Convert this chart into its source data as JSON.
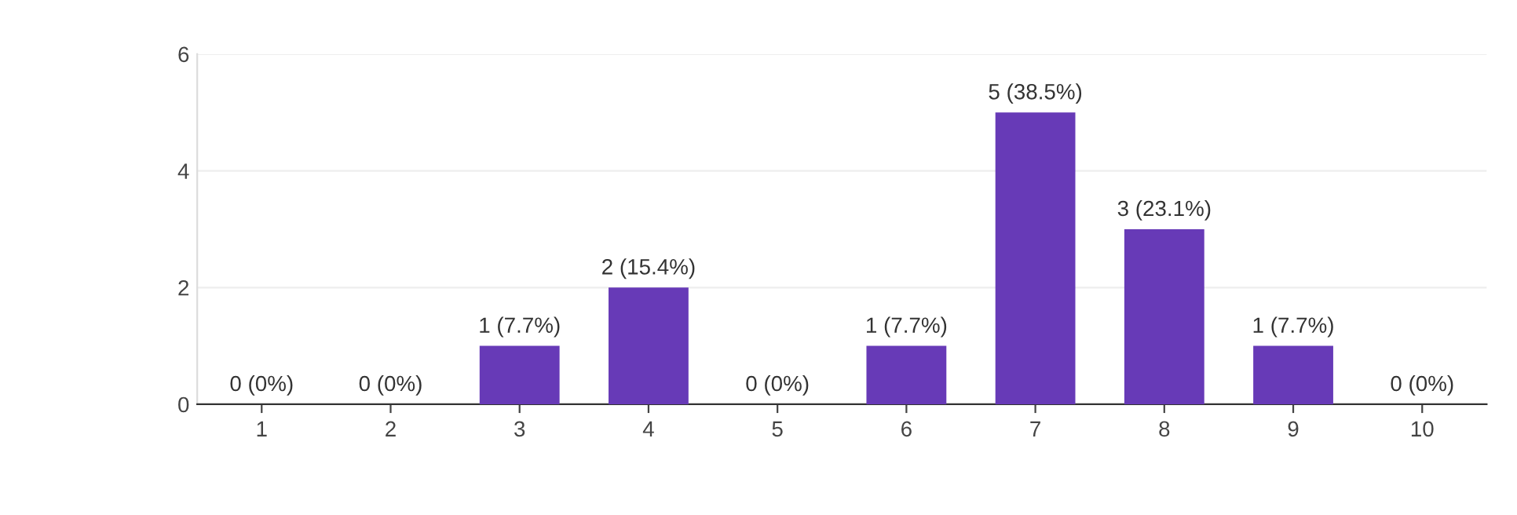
{
  "chart_data": {
    "type": "bar",
    "categories": [
      "1",
      "2",
      "3",
      "4",
      "5",
      "6",
      "7",
      "8",
      "9",
      "10"
    ],
    "values": [
      0,
      0,
      1,
      2,
      0,
      1,
      5,
      3,
      1,
      0
    ],
    "color": "#673ab7",
    "value_labels": [
      "0 (0%)",
      "0 (0%)",
      "1 (7.7%)",
      "2 (15.4%)",
      "0 (0%)",
      "1 (7.7%)",
      "5 (38.5%)",
      "3 (23.1%)",
      "1 (7.7%)",
      "0 (0%)"
    ],
    "ylim": [
      0,
      6
    ],
    "yticks": [
      0,
      2,
      4,
      6
    ],
    "grid": "y",
    "legend": false
  }
}
